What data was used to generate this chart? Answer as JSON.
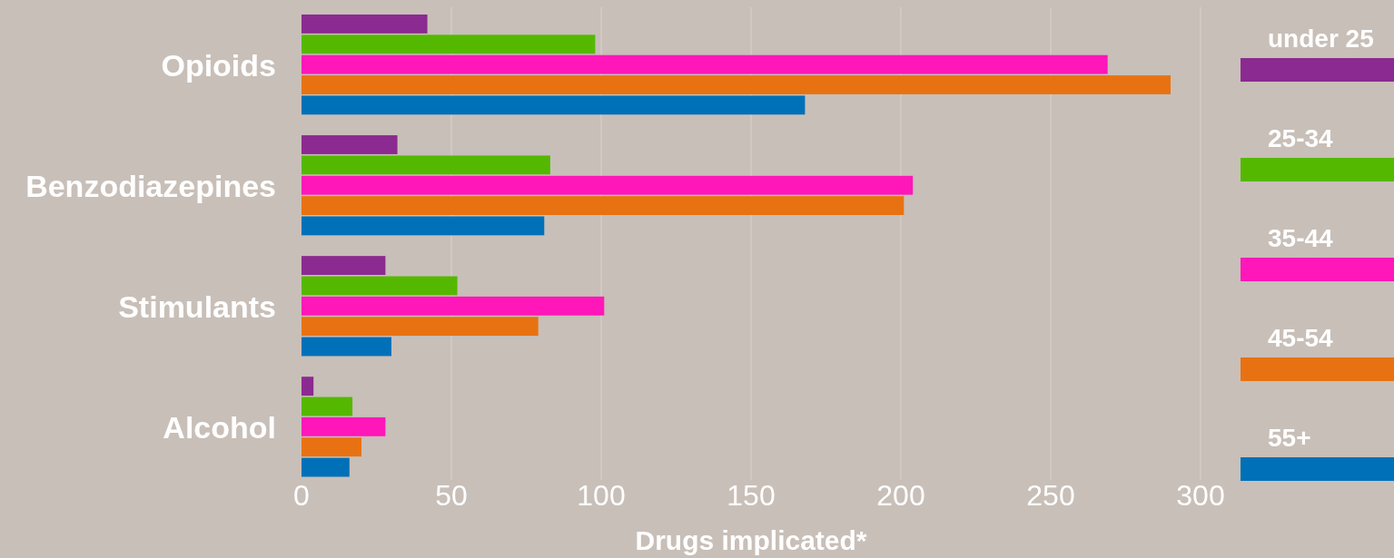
{
  "chart_data": {
    "type": "bar",
    "orientation": "horizontal",
    "xlabel": "Drugs implicated*",
    "categories": [
      "Opioids",
      "Benzodiazepines",
      "Stimulants",
      "Alcohol"
    ],
    "xlim": [
      0,
      300
    ],
    "xticks": [
      0,
      50,
      100,
      150,
      200,
      250,
      300
    ],
    "grid": "x",
    "legend": "right",
    "series": [
      {
        "name": "under 25",
        "color": "#8b2a90",
        "values": [
          42,
          32,
          28,
          4
        ]
      },
      {
        "name": "25-34",
        "color": "#55b800",
        "values": [
          98,
          83,
          52,
          17
        ]
      },
      {
        "name": "35-44",
        "color": "#ff17b9",
        "values": [
          269,
          204,
          101,
          28
        ]
      },
      {
        "name": "45-54",
        "color": "#e87212",
        "values": [
          290,
          201,
          79,
          20
        ]
      },
      {
        "name": "55+",
        "color": "#0070b8",
        "values": [
          168,
          81,
          30,
          16
        ]
      }
    ]
  }
}
